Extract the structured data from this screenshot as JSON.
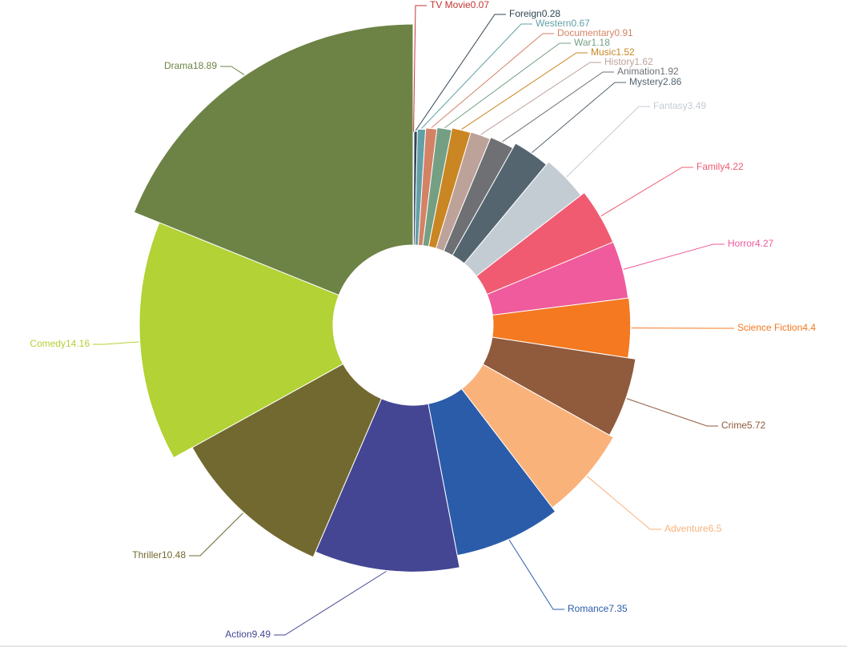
{
  "chart_data": {
    "type": "pie",
    "variant": "rose-donut",
    "title": "",
    "start": "top, clockwise",
    "labels_shown_as": "name immediately followed by value",
    "slices": [
      {
        "name": "TV Movie",
        "value": 0.07,
        "label": "TV Movie0.07",
        "color": "#c23531"
      },
      {
        "name": "Foreign",
        "value": 0.28,
        "label": "Foreign0.28",
        "color": "#2f4554"
      },
      {
        "name": "Western",
        "value": 0.67,
        "label": "Western0.67",
        "color": "#61a0a8"
      },
      {
        "name": "Documentary",
        "value": 0.91,
        "label": "Documentary0.91",
        "color": "#d48265"
      },
      {
        "name": "War",
        "value": 1.18,
        "label": "War1.18",
        "color": "#749f83"
      },
      {
        "name": "Music",
        "value": 1.52,
        "label": "Music1.52",
        "color": "#ca8622"
      },
      {
        "name": "History",
        "value": 1.62,
        "label": "History1.62",
        "color": "#bda29a"
      },
      {
        "name": "Animation",
        "value": 1.92,
        "label": "Animation1.92",
        "color": "#6e7074"
      },
      {
        "name": "Mystery",
        "value": 2.86,
        "label": "Mystery2.86",
        "color": "#546570"
      },
      {
        "name": "Fantasy",
        "value": 3.49,
        "label": "Fantasy3.49",
        "color": "#c4ccd3"
      },
      {
        "name": "Family",
        "value": 4.22,
        "label": "Family4.22",
        "color": "#f05b72"
      },
      {
        "name": "Horror",
        "value": 4.27,
        "label": "Horror4.27",
        "color": "#ef5b9c"
      },
      {
        "name": "Science Fiction",
        "value": 4.4,
        "label": "Science Fiction4.4",
        "color": "#f47920"
      },
      {
        "name": "Crime",
        "value": 5.72,
        "label": "Crime5.72",
        "color": "#905a3d"
      },
      {
        "name": "Adventure",
        "value": 6.5,
        "label": "Adventure6.5",
        "color": "#fab27b"
      },
      {
        "name": "Romance",
        "value": 7.35,
        "label": "Romance7.35",
        "color": "#2a5caa"
      },
      {
        "name": "Action",
        "value": 9.49,
        "label": "Action9.49",
        "color": "#444693"
      },
      {
        "name": "Thriller",
        "value": 10.48,
        "label": "Thriller10.48",
        "color": "#726930"
      },
      {
        "name": "Comedy",
        "value": 14.16,
        "label": "Comedy14.16",
        "color": "#b2d235"
      },
      {
        "name": "Drama",
        "value": 18.89,
        "label": "Drama18.89",
        "color": "#6d8346"
      }
    ]
  }
}
